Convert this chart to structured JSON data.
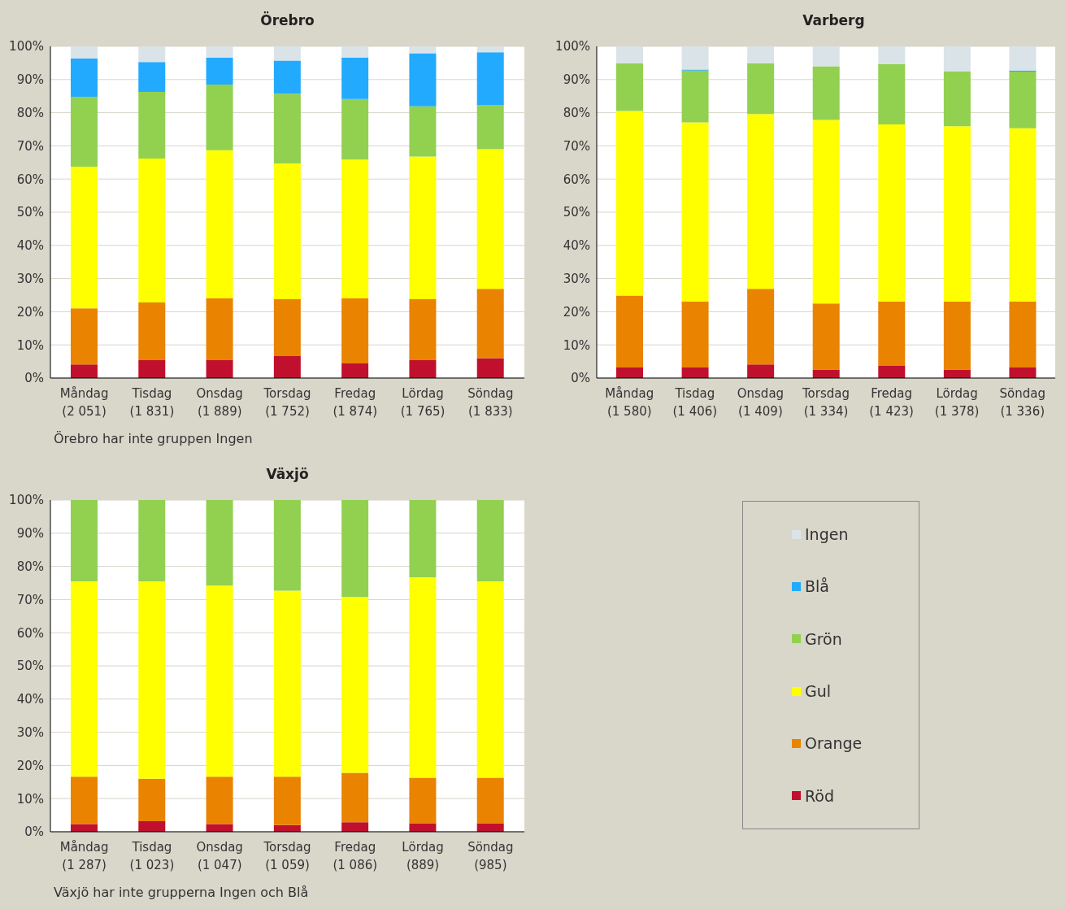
{
  "chart_data": [
    {
      "type": "bar",
      "title": "Örebro",
      "stacked": true,
      "grid": "y",
      "legend": false,
      "categories": [
        "Måndag\n(2 051)",
        "Tisdag\n(1 831)",
        "Onsdag\n(1 889)",
        "Torsdag\n(1 752)",
        "Fredag\n(1 874)",
        "Lördag\n(1 765)",
        "Söndag\n(1 833)"
      ],
      "series": [
        {
          "color": "#c0102e",
          "values": [
            4.1,
            5.4,
            5.4,
            6.6,
            4.4,
            5.4,
            6.0
          ]
        },
        {
          "color": "#e98300",
          "values": [
            16.9,
            17.4,
            18.7,
            17.2,
            19.7,
            18.4,
            20.9
          ]
        },
        {
          "color": "#ffff00",
          "values": [
            42.7,
            43.4,
            44.6,
            40.9,
            41.8,
            43.0,
            42.1
          ]
        },
        {
          "color": "#92d050",
          "values": [
            21.1,
            20.1,
            19.8,
            21.0,
            18.2,
            15.1,
            13.2
          ]
        },
        {
          "color": "#22aaff",
          "values": [
            11.5,
            9.0,
            8.1,
            10.0,
            12.5,
            16.0,
            16.0
          ]
        },
        {
          "color": "#dae3e8",
          "values": [
            3.7,
            4.7,
            3.4,
            4.3,
            3.4,
            2.1,
            1.8
          ]
        }
      ],
      "ylim": [
        0,
        100
      ],
      "yticks": [
        {
          "value": 0,
          "label": "0%"
        },
        {
          "value": 10,
          "label": "10%"
        },
        {
          "value": 20,
          "label": "20%"
        },
        {
          "value": 30,
          "label": "30%"
        },
        {
          "value": 40,
          "label": "40%"
        },
        {
          "value": 50,
          "label": "50%"
        },
        {
          "value": 60,
          "label": "60%"
        },
        {
          "value": 70,
          "label": "70%"
        },
        {
          "value": 80,
          "label": "80%"
        },
        {
          "value": 90,
          "label": "90%"
        },
        {
          "value": 100,
          "label": "100%"
        }
      ],
      "annotations": [
        "Örebro har inte gruppen Ingen"
      ]
    },
    {
      "type": "bar",
      "title": "Varberg",
      "stacked": true,
      "grid": "y",
      "legend": false,
      "categories": [
        "Måndag\n(1 580)",
        "Tisdag\n(1 406)",
        "Onsdag\n(1 409)",
        "Torsdag\n(1 334)",
        "Fredag\n(1 423)",
        "Lördag\n(1 378)",
        "Söndag\n(1 336)"
      ],
      "series": [
        {
          "color": "#c0102e",
          "values": [
            3.2,
            3.2,
            4.1,
            2.6,
            3.7,
            2.6,
            3.2
          ]
        },
        {
          "color": "#e98300",
          "values": [
            21.7,
            19.9,
            22.8,
            19.9,
            19.4,
            20.5,
            19.9
          ]
        },
        {
          "color": "#ffff00",
          "values": [
            55.6,
            54.0,
            52.7,
            55.3,
            53.4,
            52.8,
            52.2
          ]
        },
        {
          "color": "#92d050",
          "values": [
            14.4,
            15.6,
            15.3,
            16.2,
            18.1,
            16.5,
            17.1
          ]
        },
        {
          "color": "#22aaff",
          "values": [
            0,
            0.3,
            0,
            0,
            0,
            0,
            0.3
          ]
        },
        {
          "color": "#dae3e8",
          "values": [
            5.1,
            7.0,
            5.1,
            6.0,
            5.4,
            7.6,
            7.3
          ]
        }
      ],
      "ylim": [
        0,
        100
      ],
      "yticks": [
        {
          "value": 0,
          "label": "0%"
        },
        {
          "value": 10,
          "label": "10%"
        },
        {
          "value": 20,
          "label": "20%"
        },
        {
          "value": 30,
          "label": "30%"
        },
        {
          "value": 40,
          "label": "40%"
        },
        {
          "value": 50,
          "label": "50%"
        },
        {
          "value": 60,
          "label": "60%"
        },
        {
          "value": 70,
          "label": "70%"
        },
        {
          "value": 80,
          "label": "80%"
        },
        {
          "value": 90,
          "label": "90%"
        },
        {
          "value": 100,
          "label": "100%"
        }
      ]
    },
    {
      "type": "bar",
      "title": "Växjö",
      "stacked": true,
      "grid": "y",
      "legend": "right",
      "categories": [
        "Måndag\n(1 287)",
        "Tisdag\n(1 023)",
        "Onsdag\n(1 047)",
        "Torsdag\n(1 059)",
        "Fredag\n(1 086)",
        "Lördag\n(889)",
        "Söndag\n(985)"
      ],
      "series": [
        {
          "name": "Röd",
          "color": "#c0102e",
          "values": [
            2.3,
            3.2,
            2.3,
            2.0,
            2.9,
            2.6,
            2.6
          ]
        },
        {
          "name": "Orange",
          "color": "#e98300",
          "values": [
            14.3,
            12.8,
            14.3,
            14.6,
            14.9,
            13.7,
            13.7
          ]
        },
        {
          "name": "Gul",
          "color": "#ffff00",
          "values": [
            58.9,
            59.5,
            57.6,
            56.1,
            53.0,
            60.4,
            59.2
          ]
        },
        {
          "name": "Grön",
          "color": "#92d050",
          "values": [
            24.5,
            24.5,
            25.8,
            27.3,
            29.2,
            23.3,
            24.5
          ]
        },
        {
          "name": "Blå",
          "color": "#22aaff",
          "values": [
            null,
            null,
            null,
            null,
            null,
            null,
            null
          ]
        },
        {
          "name": "Ingen",
          "color": "#dae3e8",
          "values": [
            null,
            null,
            null,
            null,
            null,
            null,
            null
          ]
        }
      ],
      "ylim": [
        0,
        100
      ],
      "yticks": [
        {
          "value": 0,
          "label": "0%"
        },
        {
          "value": 10,
          "label": "10%"
        },
        {
          "value": 20,
          "label": "20%"
        },
        {
          "value": 30,
          "label": "30%"
        },
        {
          "value": 40,
          "label": "40%"
        },
        {
          "value": 50,
          "label": "50%"
        },
        {
          "value": 60,
          "label": "60%"
        },
        {
          "value": 70,
          "label": "70%"
        },
        {
          "value": 80,
          "label": "80%"
        },
        {
          "value": 90,
          "label": "90%"
        },
        {
          "value": 100,
          "label": "100%"
        }
      ],
      "annotations": [
        "Växjö har inte grupperna Ingen och Blå"
      ]
    }
  ]
}
